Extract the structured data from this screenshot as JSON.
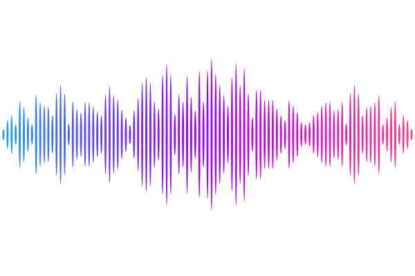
{
  "graphic": {
    "type": "sound-wave",
    "gradient_colors": [
      "#1aa3f2",
      "#6a3cf6",
      "#a200f2",
      "#d318c8",
      "#ff3d86"
    ],
    "background": "#ffffff",
    "bar_amplitudes": [
      8,
      21,
      28,
      15,
      48,
      40,
      25,
      15,
      58,
      47,
      42,
      40,
      28,
      60,
      72,
      59,
      16,
      48,
      37,
      32,
      47,
      47,
      41,
      33,
      28,
      58,
      70,
      57,
      51,
      36,
      25,
      14,
      35,
      53,
      75,
      83,
      75,
      48,
      38,
      87,
      103,
      87,
      30,
      58,
      48,
      85,
      55,
      35,
      92,
      48,
      93,
      110,
      88,
      72,
      57,
      42,
      83,
      103,
      72,
      97,
      60,
      25,
      65,
      65,
      50,
      50,
      50,
      38,
      28,
      21,
      50,
      42,
      33,
      18,
      15,
      18,
      28,
      33,
      42,
      47,
      47,
      35,
      37,
      47,
      16,
      60,
      72,
      60,
      28,
      40,
      42,
      47,
      57,
      15,
      25,
      40,
      48,
      15,
      28,
      21,
      8
    ]
  }
}
